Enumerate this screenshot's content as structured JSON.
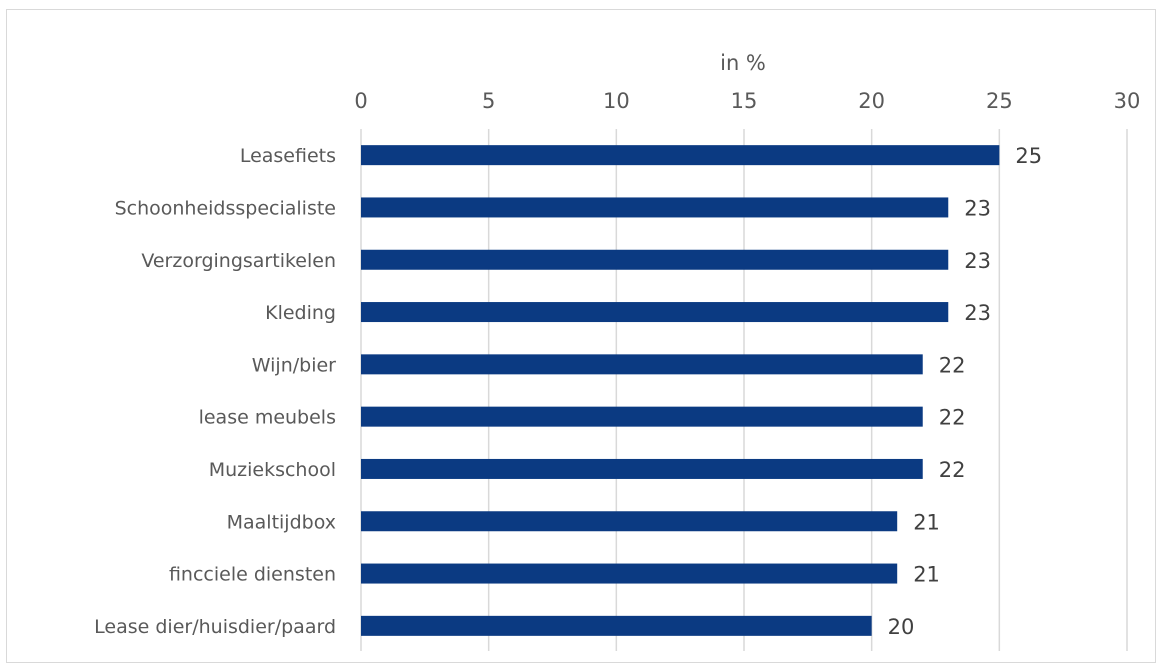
{
  "chart_data": {
    "type": "bar",
    "orientation": "horizontal",
    "xlabel": "in %",
    "xlim": [
      0,
      30
    ],
    "xticks": [
      0,
      5,
      10,
      15,
      20,
      25,
      30
    ],
    "grid": true,
    "bar_color": "#0b3a82",
    "categories": [
      "Leasefiets",
      "Schoonheidsspecialiste",
      "Verzorgingsartikelen",
      "Kleding",
      "Wijn/bier",
      "lease meubels",
      "Muziekschool",
      "Maaltijdbox",
      "fincciele diensten",
      "Lease dier/huisdier/paard"
    ],
    "values": [
      25,
      23,
      23,
      23,
      22,
      22,
      22,
      21,
      21,
      20
    ]
  }
}
